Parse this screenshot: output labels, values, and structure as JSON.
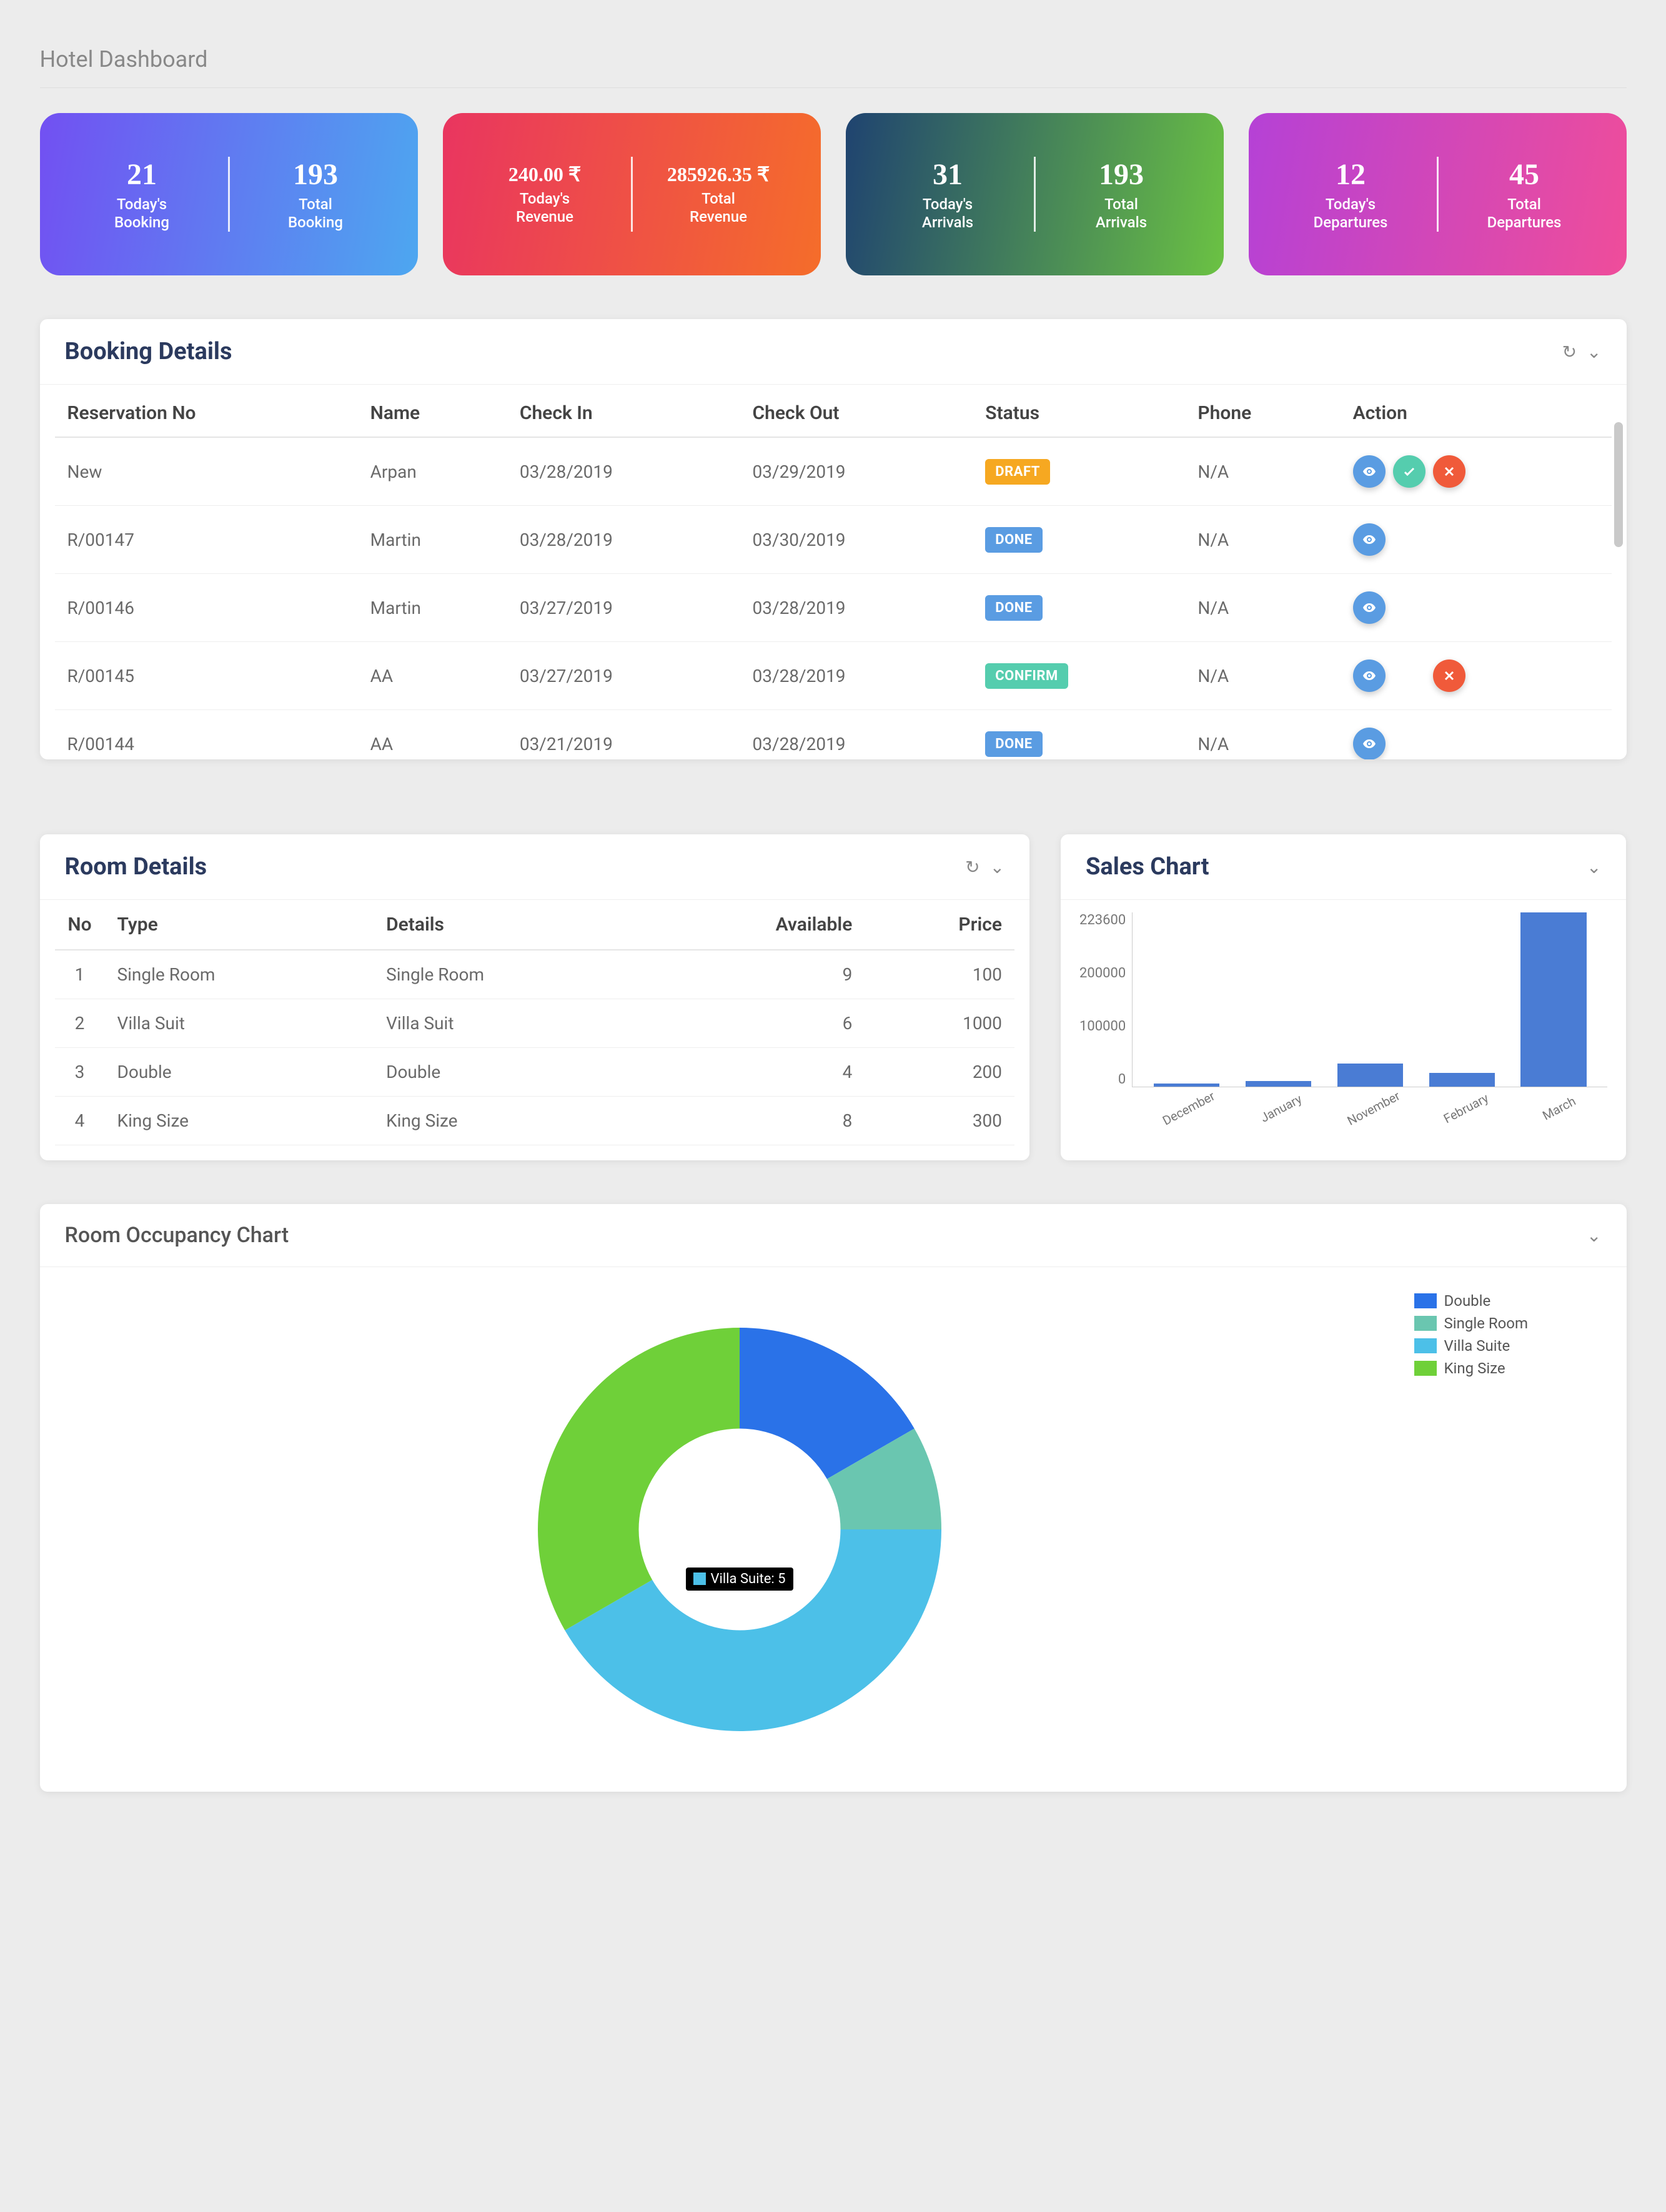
{
  "page": {
    "title": "Hotel Dashboard"
  },
  "stat_cards": [
    {
      "gradient": [
        "#7250f2",
        "#4da7f0"
      ],
      "left_value": "21",
      "left_label": "Today's Booking",
      "right_value": "193",
      "right_label": "Total Booking"
    },
    {
      "gradient": [
        "#e93560",
        "#f56d2a"
      ],
      "left_value": "240.00 ₹",
      "left_label": "Today's Revenue",
      "right_value": "285926.35 ₹",
      "right_label": "Total Revenue",
      "small_values": true
    },
    {
      "gradient": [
        "#1f4370",
        "#6bc243"
      ],
      "left_value": "31",
      "left_label": "Today's Arrivals",
      "right_value": "193",
      "right_label": "Total Arrivals"
    },
    {
      "gradient": [
        "#b541d6",
        "#ef4d9a"
      ],
      "left_value": "12",
      "left_label": "Today's Departures",
      "right_value": "45",
      "right_label": "Total Departures"
    }
  ],
  "booking": {
    "title": "Booking Details",
    "columns": [
      "Reservation No",
      "Name",
      "Check In",
      "Check Out",
      "Status",
      "Phone",
      "Action"
    ],
    "status_colors": {
      "DRAFT": "#f6a821",
      "DONE": "#5a9ce2",
      "CONFIRM": "#55cdae"
    },
    "action_colors": {
      "view": "#5a9ce2",
      "confirm": "#55cdae",
      "delete": "#f05a3a"
    },
    "rows": [
      {
        "res": "New",
        "name": "Arpan",
        "in": "03/28/2019",
        "out": "03/29/2019",
        "status": "DRAFT",
        "phone": "N/A",
        "actions": [
          "view",
          "confirm",
          "delete"
        ]
      },
      {
        "res": "R/00147",
        "name": "Martin",
        "in": "03/28/2019",
        "out": "03/30/2019",
        "status": "DONE",
        "phone": "N/A",
        "actions": [
          "view"
        ]
      },
      {
        "res": "R/00146",
        "name": "Martin",
        "in": "03/27/2019",
        "out": "03/28/2019",
        "status": "DONE",
        "phone": "N/A",
        "actions": [
          "view"
        ]
      },
      {
        "res": "R/00145",
        "name": "AA",
        "in": "03/27/2019",
        "out": "03/28/2019",
        "status": "CONFIRM",
        "phone": "N/A",
        "actions": [
          "view",
          "delete"
        ],
        "gap_after_first": true
      },
      {
        "res": "R/00144",
        "name": "AA",
        "in": "03/21/2019",
        "out": "03/28/2019",
        "status": "DONE",
        "phone": "N/A",
        "actions": [
          "view"
        ]
      }
    ]
  },
  "rooms": {
    "title": "Room Details",
    "columns": [
      "No",
      "Type",
      "Details",
      "Available",
      "Price"
    ],
    "rows": [
      {
        "no": "1",
        "type": "Single Room",
        "details": "Single Room",
        "available": "9",
        "price": "100"
      },
      {
        "no": "2",
        "type": "Villa Suit",
        "details": "Villa Suit",
        "available": "6",
        "price": "1000"
      },
      {
        "no": "3",
        "type": "Double",
        "details": "Double",
        "available": "4",
        "price": "200"
      },
      {
        "no": "4",
        "type": "King Size",
        "details": "King Size",
        "available": "8",
        "price": "300"
      }
    ]
  },
  "sales_chart": {
    "title": "Sales Chart",
    "type": "bar",
    "bar_color": "#4a7cd4",
    "ylim": [
      0,
      223600
    ],
    "yticks": [
      "223600",
      "200000",
      "100000",
      "0"
    ],
    "categories": [
      "December",
      "January",
      "November",
      "February",
      "March"
    ],
    "values": [
      4000,
      7000,
      30000,
      18000,
      223600
    ],
    "background": "#ffffff",
    "axis_color": "#cccccc",
    "label_color": "#777777",
    "label_fontsize": 20
  },
  "occupancy": {
    "title": "Room Occupancy Chart",
    "type": "donut",
    "inner_radius_ratio": 0.5,
    "slices": [
      {
        "label": "Double",
        "value": 2,
        "color": "#2a72e8"
      },
      {
        "label": "Single Room",
        "value": 1,
        "color": "#6ac6b0"
      },
      {
        "label": "Villa Suite",
        "value": 5,
        "color": "#4cc0e8"
      },
      {
        "label": "King Size",
        "value": 4,
        "color": "#6fd039"
      }
    ],
    "tooltip": {
      "color": "#4cc0e8",
      "text": "Villa Suite: 5"
    }
  }
}
